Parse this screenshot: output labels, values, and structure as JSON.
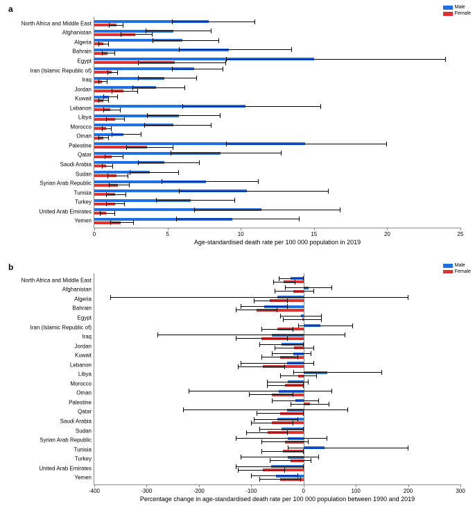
{
  "legend": {
    "male": "Male",
    "female": "Female"
  },
  "panelA": {
    "label": "a",
    "xAxisLabel": "Age-standardised death rate per 100 000 population in 2019",
    "xlim": [
      0,
      25
    ],
    "xticks": [
      0,
      5,
      10,
      15,
      20,
      25
    ],
    "bar_colors": {
      "male": "#1f6fe5",
      "female": "#e03131"
    },
    "error_color": "#000000",
    "background_color": "#ffffff",
    "axis_color": "#888888",
    "label_fontsize": 8,
    "axis_fontsize": 8,
    "title_fontsize": 12,
    "rows": [
      {
        "name": "North Africa and Middle East",
        "male": {
          "val": 7.8,
          "lo": 5.3,
          "hi": 11.0
        },
        "female": {
          "val": 1.5,
          "lo": 1.0,
          "hi": 2.0
        }
      },
      {
        "name": "Afghanistan",
        "male": {
          "val": 5.4,
          "lo": 3.5,
          "hi": 8.0
        },
        "female": {
          "val": 2.8,
          "lo": 1.8,
          "hi": 4.0
        }
      },
      {
        "name": "Algeria",
        "male": {
          "val": 6.0,
          "lo": 4.0,
          "hi": 8.5
        },
        "female": {
          "val": 0.6,
          "lo": 0.3,
          "hi": 1.0
        }
      },
      {
        "name": "Bahrain",
        "male": {
          "val": 9.2,
          "lo": 5.8,
          "hi": 13.5
        },
        "female": {
          "val": 0.9,
          "lo": 0.5,
          "hi": 1.4
        }
      },
      {
        "name": "Egypt",
        "male": {
          "val": 15.0,
          "lo": 9.0,
          "hi": 24.0
        },
        "female": {
          "val": 5.5,
          "lo": 3.0,
          "hi": 9.0
        }
      },
      {
        "name": "Iran (Islamic Republic of)",
        "male": {
          "val": 6.8,
          "lo": 5.3,
          "hi": 8.8
        },
        "female": {
          "val": 1.2,
          "lo": 0.9,
          "hi": 1.6
        }
      },
      {
        "name": "Iraq",
        "male": {
          "val": 4.8,
          "lo": 3.0,
          "hi": 7.0
        },
        "female": {
          "val": 0.5,
          "lo": 0.3,
          "hi": 0.9
        }
      },
      {
        "name": "Jordan",
        "male": {
          "val": 4.2,
          "lo": 2.6,
          "hi": 6.2
        },
        "female": {
          "val": 2.0,
          "lo": 1.2,
          "hi": 3.0
        }
      },
      {
        "name": "Kuwait",
        "male": {
          "val": 1.0,
          "lo": 0.6,
          "hi": 1.6
        },
        "female": {
          "val": 0.6,
          "lo": 0.3,
          "hi": 1.0
        }
      },
      {
        "name": "Lebanon",
        "male": {
          "val": 10.3,
          "lo": 6.0,
          "hi": 15.5
        },
        "female": {
          "val": 1.1,
          "lo": 0.6,
          "hi": 1.8
        }
      },
      {
        "name": "Libya",
        "male": {
          "val": 5.8,
          "lo": 3.6,
          "hi": 8.6
        },
        "female": {
          "val": 1.4,
          "lo": 0.8,
          "hi": 2.1
        }
      },
      {
        "name": "Morocco",
        "male": {
          "val": 5.4,
          "lo": 3.4,
          "hi": 8.0
        },
        "female": {
          "val": 0.8,
          "lo": 0.5,
          "hi": 1.2
        }
      },
      {
        "name": "Oman",
        "male": {
          "val": 2.0,
          "lo": 1.2,
          "hi": 3.2
        },
        "female": {
          "val": 0.6,
          "lo": 0.3,
          "hi": 1.0
        }
      },
      {
        "name": "Palestine",
        "male": {
          "val": 14.4,
          "lo": 9.0,
          "hi": 20.0
        },
        "female": {
          "val": 3.6,
          "lo": 2.2,
          "hi": 5.4
        }
      },
      {
        "name": "Qatar",
        "male": {
          "val": 8.6,
          "lo": 5.2,
          "hi": 12.8
        },
        "female": {
          "val": 1.2,
          "lo": 0.7,
          "hi": 2.0
        }
      },
      {
        "name": "Saudi Arabia",
        "male": {
          "val": 4.8,
          "lo": 3.0,
          "hi": 7.2
        },
        "female": {
          "val": 0.8,
          "lo": 0.5,
          "hi": 1.3
        }
      },
      {
        "name": "Sudan",
        "male": {
          "val": 3.8,
          "lo": 2.4,
          "hi": 5.8
        },
        "female": {
          "val": 1.5,
          "lo": 0.9,
          "hi": 2.3
        }
      },
      {
        "name": "Syrian Arab Republic",
        "male": {
          "val": 7.6,
          "lo": 4.6,
          "hi": 11.2
        },
        "female": {
          "val": 1.6,
          "lo": 1.0,
          "hi": 2.4
        }
      },
      {
        "name": "Tunisia",
        "male": {
          "val": 10.4,
          "lo": 5.8,
          "hi": 16.0
        },
        "female": {
          "val": 1.4,
          "lo": 0.8,
          "hi": 2.2
        }
      },
      {
        "name": "Turkey",
        "male": {
          "val": 6.6,
          "lo": 4.2,
          "hi": 9.6
        },
        "female": {
          "val": 1.4,
          "lo": 0.8,
          "hi": 2.1
        }
      },
      {
        "name": "United Arab Emirates",
        "male": {
          "val": 11.4,
          "lo": 6.8,
          "hi": 16.8
        },
        "female": {
          "val": 0.8,
          "lo": 0.4,
          "hi": 1.4
        }
      },
      {
        "name": "Yemen",
        "male": {
          "val": 9.4,
          "lo": 5.6,
          "hi": 14.0
        },
        "female": {
          "val": 1.8,
          "lo": 1.1,
          "hi": 2.7
        }
      }
    ]
  },
  "panelB": {
    "label": "b",
    "xAxisLabel": "Percentage change in age-standardised death rate per 100 000 population between 1990 and 2019",
    "xlim": [
      -400,
      300
    ],
    "xticks": [
      -400,
      -300,
      -200,
      -100,
      0,
      100,
      200,
      300
    ],
    "bar_colors": {
      "male": "#1f6fe5",
      "female": "#e03131"
    },
    "error_color": "#000000",
    "background_color": "#ffffff",
    "axis_color": "#888888",
    "label_fontsize": 8,
    "axis_fontsize": 8,
    "title_fontsize": 12,
    "rows": [
      {
        "name": "North Africa and Middle East",
        "male": {
          "val": -25,
          "lo": -48,
          "hi": 0
        },
        "female": {
          "val": -38,
          "lo": -58,
          "hi": -15
        }
      },
      {
        "name": "Afghanistan",
        "male": {
          "val": 10,
          "lo": -35,
          "hi": 55
        },
        "female": {
          "val": -20,
          "lo": -55,
          "hi": 20
        }
      },
      {
        "name": "Algeria",
        "male": {
          "val": -50,
          "lo": -370,
          "hi": 200
        },
        "female": {
          "val": -65,
          "lo": -95,
          "hi": -30
        }
      },
      {
        "name": "Bahrain",
        "male": {
          "val": -75,
          "lo": -120,
          "hi": -30
        },
        "female": {
          "val": -90,
          "lo": -130,
          "hi": -50
        }
      },
      {
        "name": "Egypt",
        "male": {
          "val": -5,
          "lo": -45,
          "hi": 35
        },
        "female": {
          "val": -2,
          "lo": -40,
          "hi": 35
        }
      },
      {
        "name": "Iran (Islamic Republic of)",
        "male": {
          "val": 32,
          "lo": -10,
          "hi": 95
        },
        "female": {
          "val": -50,
          "lo": -80,
          "hi": -20
        }
      },
      {
        "name": "Iraq",
        "male": {
          "val": -60,
          "lo": -280,
          "hi": 80
        },
        "female": {
          "val": -80,
          "lo": -130,
          "hi": -30
        }
      },
      {
        "name": "Jordan",
        "male": {
          "val": -42,
          "lo": -85,
          "hi": 0
        },
        "female": {
          "val": -18,
          "lo": -55,
          "hi": 20
        }
      },
      {
        "name": "Kuwait",
        "male": {
          "val": -20,
          "lo": -60,
          "hi": 15
        },
        "female": {
          "val": -45,
          "lo": -80,
          "hi": -10
        }
      },
      {
        "name": "Lebanon",
        "male": {
          "val": -32,
          "lo": -120,
          "hi": 20
        },
        "female": {
          "val": -78,
          "lo": -125,
          "hi": -35
        }
      },
      {
        "name": "Libya",
        "male": {
          "val": 45,
          "lo": -20,
          "hi": 150
        },
        "female": {
          "val": -10,
          "lo": -45,
          "hi": 25
        }
      },
      {
        "name": "Morocco",
        "male": {
          "val": -30,
          "lo": -70,
          "hi": 10
        },
        "female": {
          "val": -35,
          "lo": -70,
          "hi": 0
        }
      },
      {
        "name": "Oman",
        "male": {
          "val": -48,
          "lo": -220,
          "hi": 55
        },
        "female": {
          "val": -60,
          "lo": -105,
          "hi": -20
        }
      },
      {
        "name": "Palestine",
        "male": {
          "val": -15,
          "lo": -60,
          "hi": 30
        },
        "female": {
          "val": 12,
          "lo": -25,
          "hi": 50
        }
      },
      {
        "name": "Qatar",
        "male": {
          "val": -32,
          "lo": -230,
          "hi": 85
        },
        "female": {
          "val": -45,
          "lo": -90,
          "hi": 0
        }
      },
      {
        "name": "Saudi Arabia",
        "male": {
          "val": -50,
          "lo": -95,
          "hi": -10
        },
        "female": {
          "val": -60,
          "lo": -100,
          "hi": -20
        }
      },
      {
        "name": "Sudan",
        "male": {
          "val": -42,
          "lo": -85,
          "hi": 0
        },
        "female": {
          "val": -68,
          "lo": -110,
          "hi": -30
        }
      },
      {
        "name": "Syrian Arab Republic",
        "male": {
          "val": -30,
          "lo": -130,
          "hi": 45
        },
        "female": {
          "val": -35,
          "lo": -80,
          "hi": 10
        }
      },
      {
        "name": "Tunisia",
        "male": {
          "val": 40,
          "lo": -30,
          "hi": 200
        },
        "female": {
          "val": -40,
          "lo": -80,
          "hi": 0
        }
      },
      {
        "name": "Turkey",
        "male": {
          "val": -30,
          "lo": -120,
          "hi": 30
        },
        "female": {
          "val": -25,
          "lo": -65,
          "hi": 15
        }
      },
      {
        "name": "United Arab Emirates",
        "male": {
          "val": -62,
          "lo": -130,
          "hi": 0
        },
        "female": {
          "val": -78,
          "lo": -125,
          "hi": -35
        }
      },
      {
        "name": "Yemen",
        "male": {
          "val": -52,
          "lo": -100,
          "hi": -10
        },
        "female": {
          "val": -45,
          "lo": -85,
          "hi": -5
        }
      }
    ]
  }
}
